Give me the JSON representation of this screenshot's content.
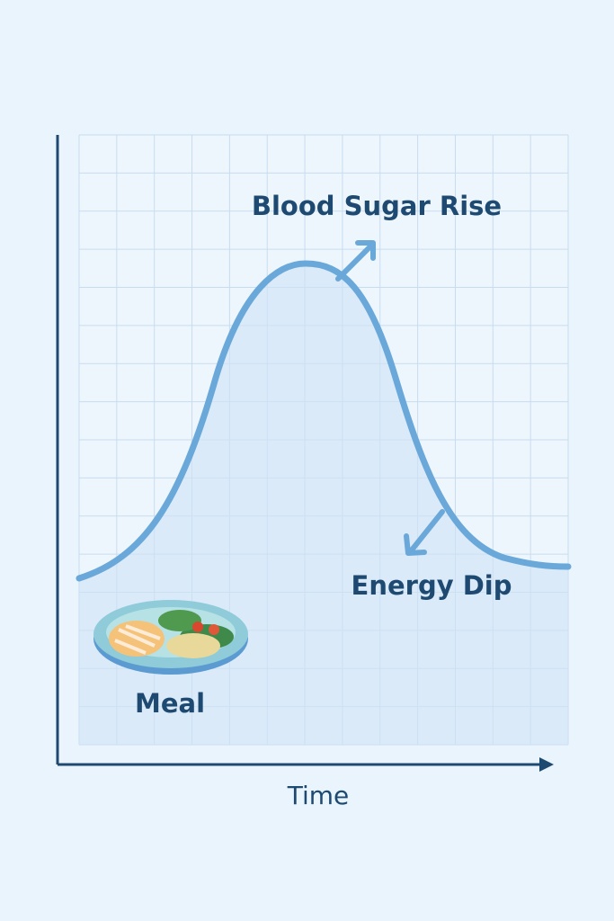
{
  "labels": {
    "peak": "Blood Sugar Rise",
    "dip": "Energy Dip",
    "meal": "Meal",
    "x_axis": "Time"
  }
}
